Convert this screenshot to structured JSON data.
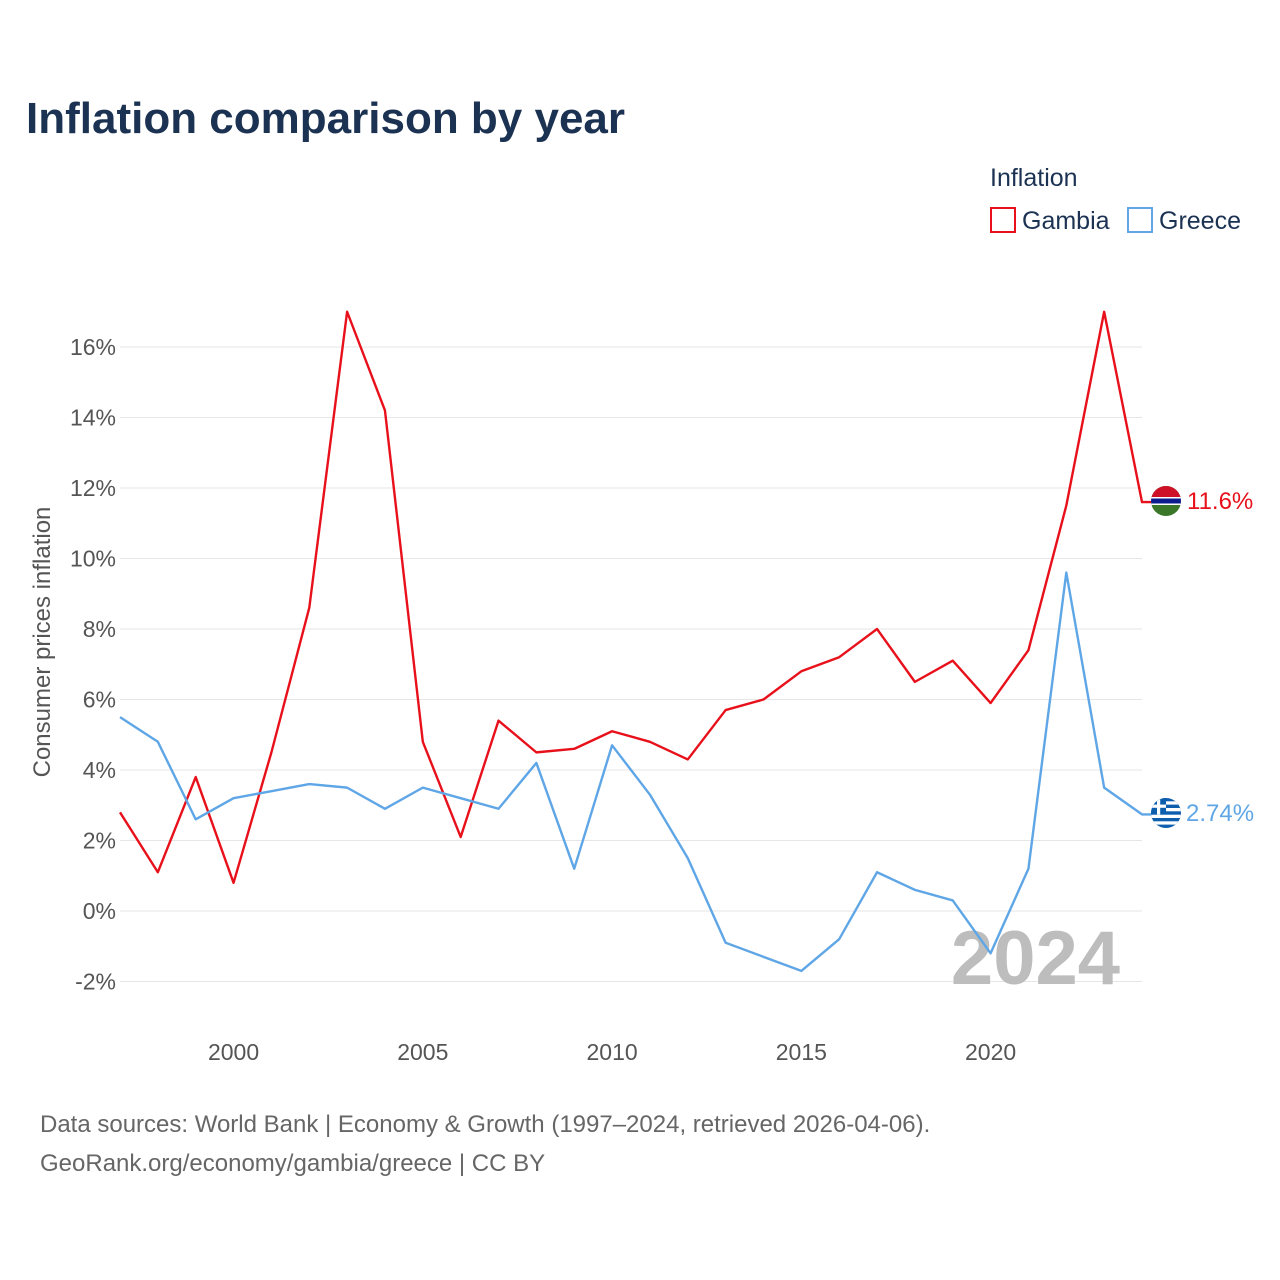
{
  "title": "Inflation comparison by year",
  "legend": {
    "title": "Inflation",
    "items": [
      {
        "name": "Gambia",
        "color": "#e8101a"
      },
      {
        "name": "Greece",
        "color": "#5fa6e6"
      }
    ]
  },
  "year_watermark": "2024",
  "source": {
    "line1": "Data sources: World Bank | Economy & Growth (1997–2024, retrieved 2026-04-06).",
    "line2": "GeoRank.org/economy/gambia/greece | CC BY"
  },
  "chart_data": {
    "type": "line",
    "title": "Inflation comparison by year",
    "xlabel": "",
    "ylabel": "Consumer prices inflation",
    "xlim": [
      1997,
      2024
    ],
    "ylim": [
      -2,
      17
    ],
    "x_ticks": [
      2000,
      2005,
      2010,
      2015,
      2020
    ],
    "x_tick_labels": [
      "2000",
      "2005",
      "2010",
      "2015",
      "2020"
    ],
    "y_ticks": [
      -2,
      0,
      2,
      4,
      6,
      8,
      10,
      12,
      14,
      16
    ],
    "y_tick_labels": [
      "-2%",
      "0%",
      "2%",
      "4%",
      "6%",
      "8%",
      "10%",
      "12%",
      "14%",
      "16%"
    ],
    "grid": true,
    "legend_position": "top-right",
    "x": [
      1997,
      1998,
      1999,
      2000,
      2001,
      2002,
      2003,
      2004,
      2005,
      2006,
      2007,
      2008,
      2009,
      2010,
      2011,
      2012,
      2013,
      2014,
      2015,
      2016,
      2017,
      2018,
      2019,
      2020,
      2021,
      2022,
      2023,
      2024
    ],
    "series": [
      {
        "name": "Gambia",
        "color": "#e8101a",
        "end_label": "11.6%",
        "values": [
          2.8,
          1.1,
          3.8,
          0.8,
          4.5,
          8.6,
          17.0,
          14.2,
          4.8,
          2.1,
          5.4,
          4.5,
          4.6,
          5.1,
          4.8,
          4.3,
          5.7,
          6.0,
          6.8,
          7.2,
          8.0,
          6.5,
          7.1,
          5.9,
          7.4,
          11.5,
          17.0,
          11.6
        ]
      },
      {
        "name": "Greece",
        "color": "#5fa6e6",
        "end_label": "2.74%",
        "values": [
          5.5,
          4.8,
          2.6,
          3.2,
          3.4,
          3.6,
          3.5,
          2.9,
          3.5,
          3.2,
          2.9,
          4.2,
          1.2,
          4.7,
          3.3,
          1.5,
          -0.9,
          -1.3,
          -1.7,
          -0.8,
          1.1,
          0.6,
          0.3,
          -1.2,
          1.2,
          9.6,
          3.5,
          2.74
        ]
      }
    ]
  }
}
